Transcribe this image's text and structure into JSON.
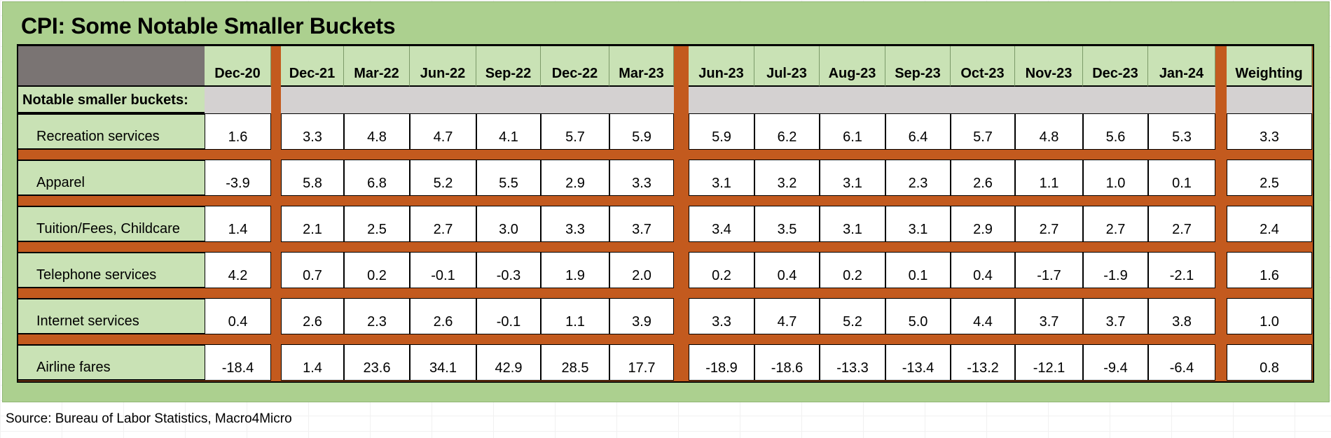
{
  "title": "CPI: Some Notable Smaller Buckets",
  "section_label": "Notable smaller buckets:",
  "source": "Source: Bureau of Labor Statistics, Macro4Micro",
  "columns": {
    "first": [
      "Dec-20"
    ],
    "group2": [
      "Dec-21",
      "Mar-22",
      "Jun-22",
      "Sep-22",
      "Dec-22",
      "Mar-23"
    ],
    "group3": [
      "Jun-23",
      "Jul-23",
      "Aug-23",
      "Sep-23",
      "Oct-23",
      "Nov-23",
      "Dec-23",
      "Jan-24"
    ],
    "weighting": "Weighting"
  },
  "rows": [
    {
      "label": "Recreation services",
      "first": [
        "1.6"
      ],
      "group2": [
        "3.3",
        "4.8",
        "4.7",
        "4.1",
        "5.7",
        "5.9"
      ],
      "group3": [
        "5.9",
        "6.2",
        "6.1",
        "6.4",
        "5.7",
        "4.8",
        "5.6",
        "5.3"
      ],
      "weighting": "3.3"
    },
    {
      "label": "Apparel",
      "first": [
        "-3.9"
      ],
      "group2": [
        "5.8",
        "6.8",
        "5.2",
        "5.5",
        "2.9",
        "3.3"
      ],
      "group3": [
        "3.1",
        "3.2",
        "3.1",
        "2.3",
        "2.6",
        "1.1",
        "1.0",
        "0.1"
      ],
      "weighting": "2.5"
    },
    {
      "label": "Tuition/Fees, Childcare",
      "first": [
        "1.4"
      ],
      "group2": [
        "2.1",
        "2.5",
        "2.7",
        "3.0",
        "3.3",
        "3.7"
      ],
      "group3": [
        "3.4",
        "3.5",
        "3.1",
        "3.1",
        "2.9",
        "2.7",
        "2.7",
        "2.7"
      ],
      "weighting": "2.4"
    },
    {
      "label": "Telephone services",
      "first": [
        "4.2"
      ],
      "group2": [
        "0.7",
        "0.2",
        "-0.1",
        "-0.3",
        "1.9",
        "2.0"
      ],
      "group3": [
        "0.2",
        "0.4",
        "0.2",
        "0.1",
        "0.4",
        "-1.7",
        "-1.9",
        "-2.1"
      ],
      "weighting": "1.6"
    },
    {
      "label": "Internet services",
      "first": [
        "0.4"
      ],
      "group2": [
        "2.6",
        "2.3",
        "2.6",
        "-0.1",
        "1.1",
        "3.9"
      ],
      "group3": [
        "3.3",
        "4.7",
        "5.2",
        "5.0",
        "4.4",
        "3.7",
        "3.7",
        "3.8"
      ],
      "weighting": "1.0"
    },
    {
      "label": "Airline fares",
      "first": [
        "-18.4"
      ],
      "group2": [
        "1.4",
        "23.6",
        "34.1",
        "42.9",
        "28.5",
        "17.7"
      ],
      "group3": [
        "-18.9",
        "-18.6",
        "-13.3",
        "-13.4",
        "-13.2",
        "-12.1",
        "-9.4",
        "-6.4"
      ],
      "weighting": "0.8"
    }
  ]
}
